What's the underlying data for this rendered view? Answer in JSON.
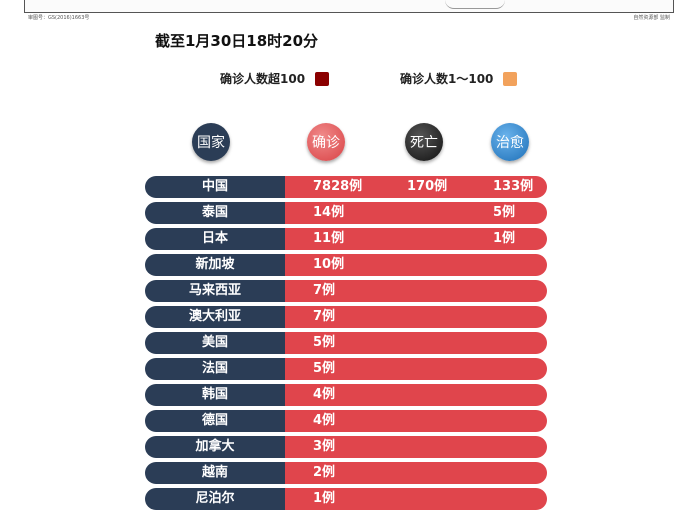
{
  "map_no": "审图号：GS(2016)1663号",
  "map_credit": "自然资源部 监制",
  "cutoff_time": "截至1月30日18时20分",
  "legend": [
    {
      "label": "确诊人数超100",
      "color": "#8b0000"
    },
    {
      "label": "确诊人数1～100",
      "color": "#f2a25c"
    }
  ],
  "headers": {
    "country": "国家",
    "confirmed": "确诊",
    "deaths": "死亡",
    "recovered": "治愈"
  },
  "rows": [
    {
      "country": "中国",
      "confirmed": "7828例",
      "deaths": "170例",
      "recovered": "133例"
    },
    {
      "country": "泰国",
      "confirmed": "14例",
      "deaths": "",
      "recovered": "5例"
    },
    {
      "country": "日本",
      "confirmed": "11例",
      "deaths": "",
      "recovered": "1例"
    },
    {
      "country": "新加坡",
      "confirmed": "10例",
      "deaths": "",
      "recovered": ""
    },
    {
      "country": "马来西亚",
      "confirmed": "7例",
      "deaths": "",
      "recovered": ""
    },
    {
      "country": "澳大利亚",
      "confirmed": "7例",
      "deaths": "",
      "recovered": ""
    },
    {
      "country": "美国",
      "confirmed": "5例",
      "deaths": "",
      "recovered": ""
    },
    {
      "country": "法国",
      "confirmed": "5例",
      "deaths": "",
      "recovered": ""
    },
    {
      "country": "韩国",
      "confirmed": "4例",
      "deaths": "",
      "recovered": ""
    },
    {
      "country": "德国",
      "confirmed": "4例",
      "deaths": "",
      "recovered": ""
    },
    {
      "country": "加拿大",
      "confirmed": "3例",
      "deaths": "",
      "recovered": ""
    },
    {
      "country": "越南",
      "confirmed": "2例",
      "deaths": "",
      "recovered": ""
    },
    {
      "country": "尼泊尔",
      "confirmed": "1例",
      "deaths": "",
      "recovered": ""
    }
  ]
}
